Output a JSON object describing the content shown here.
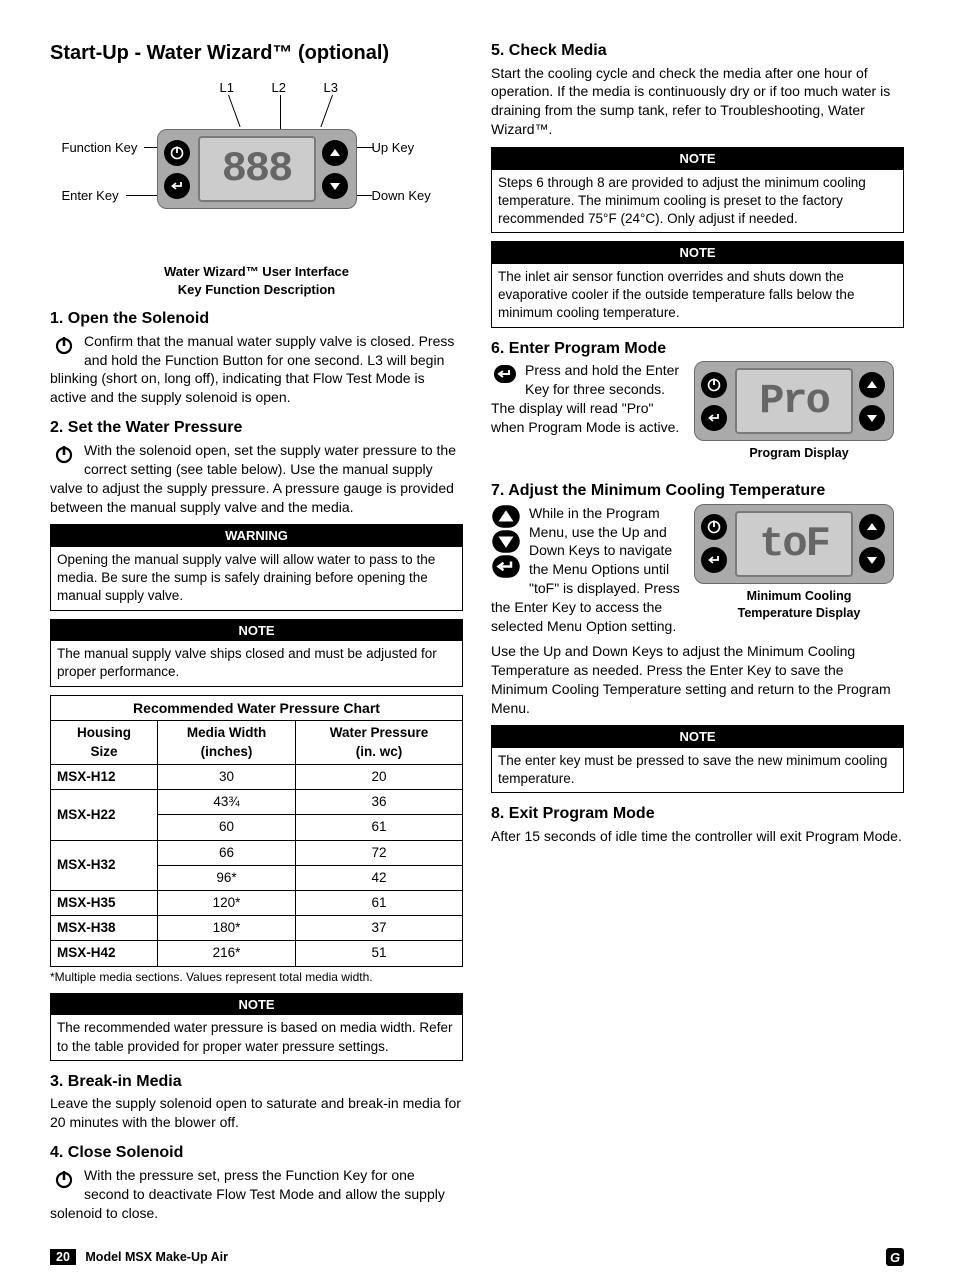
{
  "left": {
    "title": "Start-Up - Water Wizard™ (optional)",
    "diagram": {
      "labels": {
        "l1": "L1",
        "l2": "L2",
        "l3": "L3",
        "function_key": "Function Key",
        "enter_key": "Enter Key",
        "up_key": "Up Key",
        "down_key": "Down Key"
      },
      "caption_l1": "Water Wizard™ User Interface",
      "caption_l2": "Key Function Description",
      "screen_text": "888"
    },
    "s1": {
      "h": "1.  Open the Solenoid",
      "p": "Confirm that the manual water supply valve is closed. Press and hold the Function Button for one second. L3 will begin blinking (short on, long off), indicating that Flow Test Mode is active and the supply solenoid is open."
    },
    "s2": {
      "h": "2.  Set the Water Pressure",
      "p": "With the solenoid open, set the supply water pressure to the correct setting (see table below). Use the manual supply valve to adjust the supply pressure. A pressure gauge is provided between the manual supply valve and the media."
    },
    "warn": {
      "title": "WARNING",
      "body": "Opening the manual supply valve will allow water to pass to the media. Be sure the sump is safely draining before opening the manual supply valve."
    },
    "note1": {
      "title": "NOTE",
      "body": "The manual supply valve ships closed and must be adjusted for proper performance."
    },
    "table": {
      "title": "Recommended Water Pressure Chart",
      "headers": {
        "c0_l1": "Housing",
        "c0_l2": "Size",
        "c1_l1": "Media Width",
        "c1_l2": "(inches)",
        "c2_l1": "Water Pressure",
        "c2_l2": "(in. wc)"
      },
      "rows": [
        {
          "size": "MSX-H12",
          "width": "30",
          "wp": "20",
          "rowspan": 1
        },
        {
          "size": "MSX-H22",
          "width": "43¾",
          "wp": "36",
          "rowspan": 2
        },
        {
          "_skip": true,
          "width": "60",
          "wp": "61"
        },
        {
          "size": "MSX-H32",
          "width": "66",
          "wp": "72",
          "rowspan": 2
        },
        {
          "_skip": true,
          "width": "96*",
          "wp": "42"
        },
        {
          "size": "MSX-H35",
          "width": "120*",
          "wp": "61",
          "rowspan": 1
        },
        {
          "size": "MSX-H38",
          "width": "180*",
          "wp": "37",
          "rowspan": 1
        },
        {
          "size": "MSX-H42",
          "width": "216*",
          "wp": "51",
          "rowspan": 1
        }
      ],
      "footnote": "*Multiple media sections. Values represent total media width."
    },
    "note2": {
      "title": "NOTE",
      "body": "The recommended water pressure is based on media width. Refer to the table provided for proper water pressure settings."
    },
    "s3": {
      "h": "3.  Break-in Media",
      "p": "Leave the supply solenoid open to saturate and break-in media for 20 minutes with the blower off."
    },
    "s4": {
      "h": "4.  Close Solenoid",
      "p": "With the pressure set, press the Function Key for one second to deactivate Flow Test Mode and allow the supply solenoid to close."
    }
  },
  "right": {
    "s5": {
      "h": "5.  Check Media",
      "p": "Start the cooling cycle and check the media after one hour of operation. If the media is continuously dry or if too much water is draining from the sump tank, refer to Troubleshooting, Water Wizard™."
    },
    "note3": {
      "title": "NOTE",
      "body": "Steps 6 through 8 are provided to adjust the minimum cooling temperature. The minimum cooling is preset to the factory recommended 75°F (24°C). Only adjust if needed."
    },
    "note4": {
      "title": "NOTE",
      "body": "The inlet air sensor function overrides and shuts down the evaporative cooler if the outside temperature falls below the minimum cooling temperature."
    },
    "s6": {
      "h": "6.  Enter Program Mode",
      "p": "Press and hold the Enter Key for   three seconds. The display will read \"Pro\" when Program Mode is active.",
      "fig_caption": "Program Display",
      "screen": "Pro"
    },
    "s7": {
      "h": "7.  Adjust the Minimum Cooling Temperature",
      "p1": "While in the Program Menu, use the Up and Down Keys to navigate the Menu Options until \"toF\" is displayed. Press the Enter Key to access the selected Menu Option setting.",
      "p2": "Use the Up and Down Keys to adjust the Minimum Cooling Temperature as needed. Press the Enter Key to save the Minimum Cooling Temperature setting and return to the Program Menu.",
      "fig_caption_l1": "Minimum Cooling",
      "fig_caption_l2": "Temperature Display",
      "screen": "toF"
    },
    "note5": {
      "title": "NOTE",
      "body": "The enter key must be pressed to save the new minimum cooling temperature."
    },
    "s8": {
      "h": "8.  Exit Program Mode",
      "p": "After 15 seconds of idle time the controller will exit Program Mode."
    }
  },
  "footer": {
    "page": "20",
    "model": "Model MSX Make-Up Air"
  },
  "colors": {
    "black": "#000000",
    "panel_bg": "#a9aaa9",
    "screen_bg": "#cccccc"
  }
}
